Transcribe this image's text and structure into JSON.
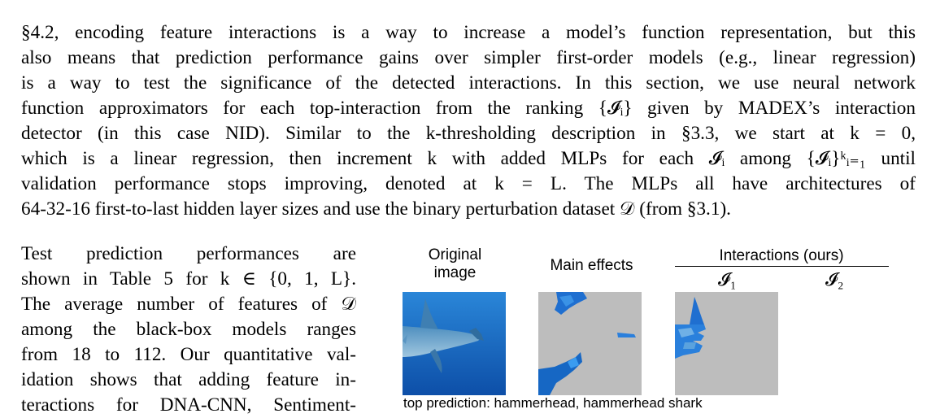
{
  "paragraph": {
    "lines": [
      "§4.2, encoding feature interactions is a way to increase a model’s function representation, but this",
      "also means that prediction performance gains over simpler first-order models (e.g., linear regression)",
      "is a way to test the significance of the detected interactions. In this section, we use neural network",
      "function approximators for each top-interaction from the ranking {𝓘ᵢ} given by MADEX’s interaction",
      "detector (in this case NID). Similar to the k-thresholding description in §3.3, we start at k = 0,",
      "which is a linear regression, then increment k with added MLPs for each 𝓘ᵢ among {𝓘ᵢ}ᵏᵢ₌₁ until",
      "validation performance stops improving, denoted at k = L. The MLPs all have architectures of",
      "64-32-16 first-to-last hidden layer sizes and use the binary perturbation dataset 𝒟 (from §3.1)."
    ]
  },
  "column": {
    "lines": [
      "Test prediction performances are",
      "shown in Table 5 for k ∈ {0, 1, L}.",
      "The average number of features of 𝒟",
      "among the black-box models ranges",
      "from 18 to 112. Our quantitative val-",
      "idation shows that adding feature in-",
      "teractions for DNA-CNN, Sentiment-"
    ]
  },
  "figure": {
    "original_label_1": "Original",
    "original_label_2": "image",
    "main_effects_label": "Main effects",
    "interactions_label": "Interactions (ours)",
    "i1_label": "𝓘₁",
    "i2_label": "𝓘₂",
    "prediction_text": "top prediction: hammerhead, hammerhead shark"
  },
  "colors": {
    "ocean": "#1a73c8",
    "mask_gray": "#bdbdbd"
  }
}
